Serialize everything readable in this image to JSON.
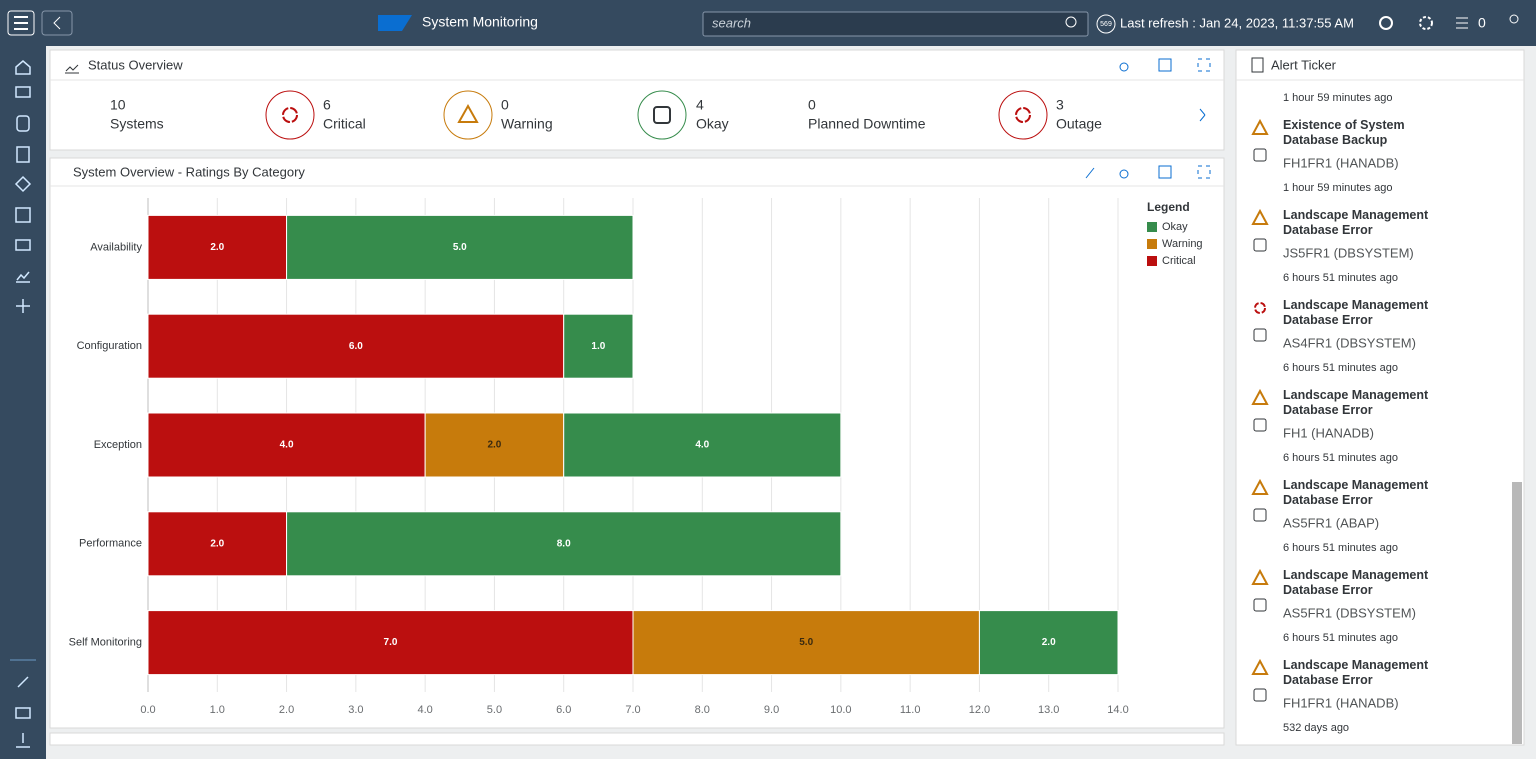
{
  "header": {
    "title": "System Monitoring",
    "search_placeholder": "search",
    "refresh_badge": "569",
    "last_refresh": "Last refresh : Jan 24, 2023, 11:37:55 AM",
    "notification_count": "0"
  },
  "status_overview": {
    "title": "Status Overview",
    "items": [
      {
        "value": "10",
        "label": "Systems"
      },
      {
        "value": "6",
        "label": "Critical"
      },
      {
        "value": "0",
        "label": "Warning"
      },
      {
        "value": "4",
        "label": "Okay"
      },
      {
        "value": "0",
        "label": "Planned Downtime"
      },
      {
        "value": "3",
        "label": "Outage"
      }
    ]
  },
  "chart_data": {
    "type": "bar",
    "orientation": "horizontal",
    "stacked": true,
    "title": "System Overview - Ratings By Category",
    "legend_title": "Legend",
    "legend": "top-right",
    "grid": true,
    "categories": [
      "Availability",
      "Configuration",
      "Exception",
      "Performance",
      "Self Monitoring"
    ],
    "series": [
      {
        "name": "Critical",
        "color": "#bb0f0f",
        "values": [
          2,
          6,
          4,
          2,
          7
        ],
        "value_labels": [
          "2.0",
          "6.0",
          "4.0",
          "2.0",
          "7.0"
        ]
      },
      {
        "name": "Warning",
        "color": "#c77b0c",
        "values": [
          null,
          null,
          2,
          null,
          5
        ],
        "value_labels": [
          null,
          null,
          "2.0",
          null,
          "5.0"
        ]
      },
      {
        "name": "Okay",
        "color": "#368c4c",
        "values": [
          5,
          1,
          4,
          8,
          2
        ],
        "value_labels": [
          "5.0",
          "1.0",
          "4.0",
          "8.0",
          "2.0"
        ]
      }
    ],
    "xlim": [
      0,
      14
    ],
    "xticks": [
      {
        "value": 0,
        "label": "0.0"
      },
      {
        "value": 1,
        "label": "1.0"
      },
      {
        "value": 2,
        "label": "2.0"
      },
      {
        "value": 3,
        "label": "3.0"
      },
      {
        "value": 4,
        "label": "4.0"
      },
      {
        "value": 5,
        "label": "5.0"
      },
      {
        "value": 6,
        "label": "6.0"
      },
      {
        "value": 7,
        "label": "7.0"
      },
      {
        "value": 8,
        "label": "8.0"
      },
      {
        "value": 9,
        "label": "9.0"
      },
      {
        "value": 10,
        "label": "10.0"
      },
      {
        "value": 11,
        "label": "11.0"
      },
      {
        "value": 12,
        "label": "12.0"
      },
      {
        "value": 13,
        "label": "13.0"
      },
      {
        "value": 14,
        "label": "14.0"
      }
    ]
  },
  "alert_ticker": {
    "title": "Alert Ticker",
    "first_time": "1 hour 59 minutes ago",
    "alerts": [
      {
        "title": "Existence of System Database Backup",
        "system": "FH1FR1 (HANADB)",
        "time": "1 hour 59 minutes ago"
      },
      {
        "title": "Landscape Management Database Error",
        "system": "JS5FR1 (DBSYSTEM)",
        "time": "6 hours 51 minutes ago"
      },
      {
        "title": "Landscape Management Database Error",
        "system": "AS4FR1 (DBSYSTEM)",
        "time": "6 hours 51 minutes ago"
      },
      {
        "title": "Landscape Management Database Error",
        "system": "FH1 (HANADB)",
        "time": "6 hours 51 minutes ago"
      },
      {
        "title": "Landscape Management Database Error",
        "system": "AS5FR1 (ABAP)",
        "time": "6 hours 51 minutes ago"
      },
      {
        "title": "Landscape Management Database Error",
        "system": "AS5FR1 (DBSYSTEM)",
        "time": "6 hours 51 minutes ago"
      },
      {
        "title": "Landscape Management Database Error",
        "system": "FH1FR1 (HANADB)",
        "time": "532 days ago"
      }
    ]
  }
}
